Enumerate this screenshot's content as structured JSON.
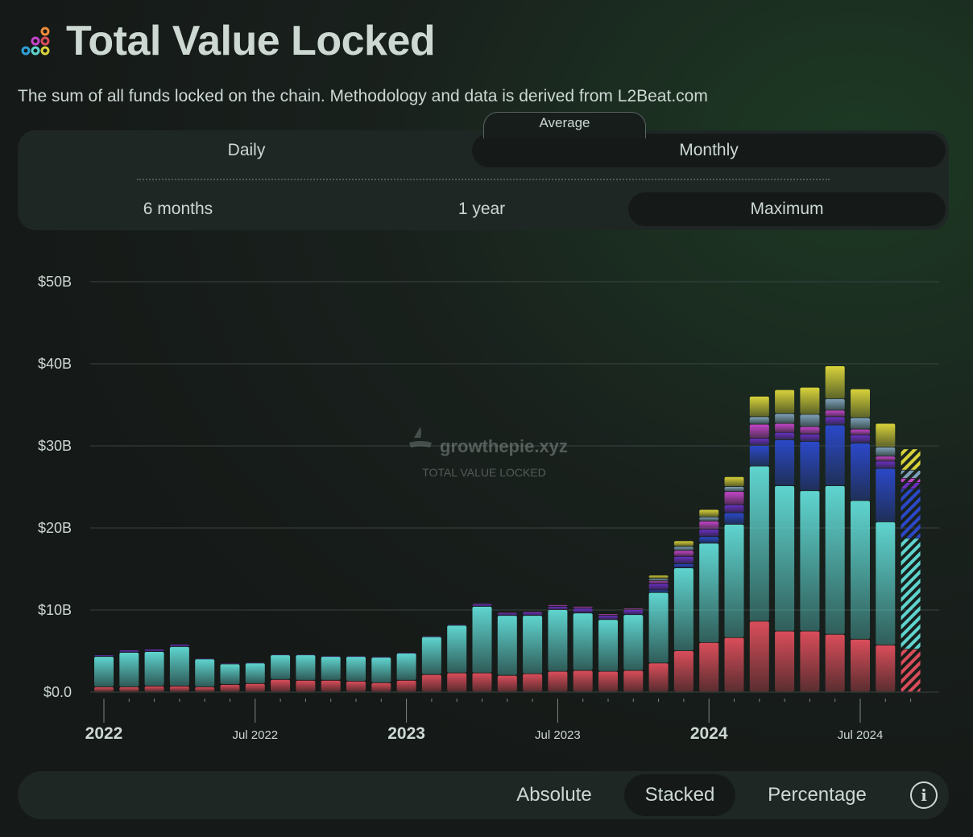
{
  "header": {
    "title": "Total Value Locked",
    "logo_icon": "stacked-coins-icon"
  },
  "subtitle": "The sum of all funds locked on the chain. Methodology and data is derived from L2Beat.com",
  "aggregation": {
    "label": "Average",
    "options": [
      "Daily",
      "Monthly"
    ],
    "selected": "Monthly"
  },
  "timespan": {
    "options": [
      "6 months",
      "1 year",
      "Maximum"
    ],
    "selected": "Maximum"
  },
  "display_modes": {
    "options": [
      "Absolute",
      "Stacked",
      "Percentage"
    ],
    "selected": "Stacked"
  },
  "info_icon": "info-icon",
  "watermark": {
    "brand": "growthepie.xyz",
    "caption": "TOTAL VALUE LOCKED"
  },
  "colors": {
    "cyan": "#5fd4cf",
    "red": "#d94d5a",
    "blue": "#2b48c8",
    "yellow": "#d8d23a",
    "magenta": "#c444c9",
    "purple": "#6a2fc0",
    "teal": "#3fa39a",
    "steel": "#7fa0b8",
    "accent": "#cdd8d3",
    "background": "#19211d"
  },
  "chart_data": {
    "type": "bar",
    "stacked": true,
    "y_ticks": [
      "$0.0",
      "$10B",
      "$20B",
      "$30B",
      "$40B",
      "$50B"
    ],
    "ylim": [
      0,
      50
    ],
    "unit": "B USD",
    "x_ticks": [
      {
        "label": "2022",
        "major": true,
        "index": 0
      },
      {
        "label": "Jul 2022",
        "major": false,
        "index": 6
      },
      {
        "label": "2023",
        "major": true,
        "index": 12
      },
      {
        "label": "Jul 2023",
        "major": false,
        "index": 18
      },
      {
        "label": "2024",
        "major": true,
        "index": 24
      },
      {
        "label": "Jul 2024",
        "major": false,
        "index": 30
      }
    ],
    "grid": true,
    "months": [
      "2022-01",
      "2022-02",
      "2022-03",
      "2022-04",
      "2022-05",
      "2022-06",
      "2022-07",
      "2022-08",
      "2022-09",
      "2022-10",
      "2022-11",
      "2022-12",
      "2023-01",
      "2023-02",
      "2023-03",
      "2023-04",
      "2023-05",
      "2023-06",
      "2023-07",
      "2023-08",
      "2023-09",
      "2023-10",
      "2023-11",
      "2023-12",
      "2024-01",
      "2024-02",
      "2024-03",
      "2024-04",
      "2024-05",
      "2024-06",
      "2024-07",
      "2024-08",
      "2024-09"
    ],
    "partial_last_month": true,
    "series": [
      {
        "color": "#d94d5a",
        "values": [
          0.6,
          0.6,
          0.7,
          0.7,
          0.6,
          0.9,
          1.0,
          1.5,
          1.4,
          1.4,
          1.3,
          1.1,
          1.4,
          2.1,
          2.3,
          2.3,
          2.0,
          2.2,
          2.5,
          2.6,
          2.5,
          2.6,
          3.5,
          5.0,
          6.0,
          6.6,
          8.6,
          7.4,
          7.4,
          7.0,
          6.4,
          5.7,
          5.2
        ]
      },
      {
        "color": "#5fd4cf",
        "values": [
          3.7,
          4.2,
          4.2,
          4.8,
          3.4,
          2.5,
          2.5,
          3.0,
          3.1,
          2.9,
          3.0,
          3.1,
          3.3,
          4.6,
          5.8,
          8.1,
          7.3,
          7.1,
          7.5,
          7.0,
          6.3,
          6.8,
          8.6,
          10.1,
          12.1,
          13.8,
          18.9,
          17.7,
          17.1,
          18.1,
          16.9,
          15.0,
          13.5
        ]
      },
      {
        "color": "#2b48c8",
        "values": [
          0,
          0,
          0,
          0,
          0,
          0,
          0,
          0,
          0,
          0,
          0,
          0,
          0,
          0,
          0,
          0,
          0,
          0,
          0,
          0,
          0,
          0,
          0.3,
          0.5,
          0.8,
          1.4,
          2.5,
          5.6,
          6.0,
          7.4,
          7.0,
          6.5,
          6.0
        ]
      },
      {
        "color": "#6a2fc0",
        "values": [
          0.2,
          0.3,
          0.3,
          0.3,
          0.1,
          0.1,
          0.1,
          0.1,
          0.1,
          0.1,
          0.1,
          0.1,
          0.1,
          0.1,
          0.1,
          0.3,
          0.3,
          0.4,
          0.4,
          0.6,
          0.5,
          0.6,
          0.8,
          0.9,
          0.9,
          1.0,
          0.9,
          0.9,
          0.9,
          1.0,
          1.0,
          0.9,
          0.8
        ]
      },
      {
        "color": "#c444c9",
        "values": [
          0,
          0,
          0,
          0,
          0,
          0,
          0,
          0,
          0,
          0,
          0,
          0,
          0,
          0,
          0,
          0.1,
          0.1,
          0.1,
          0.2,
          0.2,
          0.2,
          0.2,
          0.3,
          0.7,
          1.0,
          1.6,
          1.7,
          1.1,
          0.9,
          0.8,
          0.7,
          0.6,
          0.5
        ]
      },
      {
        "color": "#7fa0b8",
        "values": [
          0,
          0,
          0,
          0,
          0,
          0,
          0,
          0,
          0,
          0,
          0,
          0,
          0,
          0,
          0,
          0,
          0,
          0,
          0,
          0,
          0,
          0,
          0.3,
          0.5,
          0.5,
          0.6,
          0.9,
          1.2,
          1.5,
          1.4,
          1.4,
          1.1,
          1.0
        ]
      },
      {
        "color": "#d8d23a",
        "values": [
          0,
          0,
          0,
          0,
          0,
          0,
          0,
          0,
          0,
          0,
          0,
          0,
          0,
          0,
          0,
          0,
          0,
          0,
          0,
          0,
          0,
          0,
          0.4,
          0.7,
          0.9,
          1.2,
          2.5,
          2.9,
          3.3,
          4.0,
          3.5,
          2.9,
          2.6
        ]
      }
    ]
  }
}
